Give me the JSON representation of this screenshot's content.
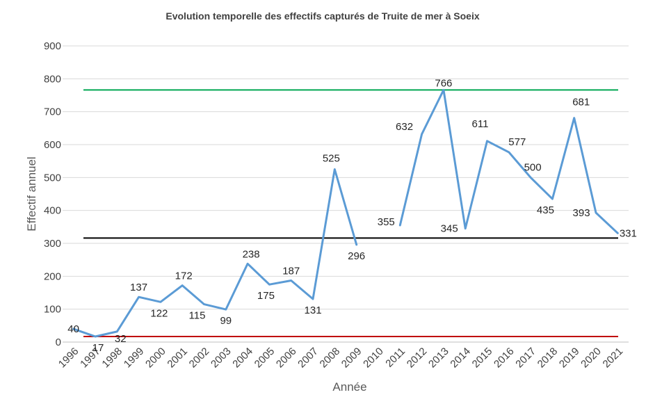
{
  "chart_data": {
    "type": "line",
    "title": "Evolution temporelle des effectifs capturés de Truite de mer à Soeix",
    "xlabel": "Année",
    "ylabel": "Effectif annuel",
    "ylim": [
      0,
      900
    ],
    "yticks": [
      "0",
      "100",
      "200",
      "300",
      "400",
      "500",
      "600",
      "700",
      "800",
      "900"
    ],
    "categories": [
      "1996",
      "1997",
      "1998",
      "1999",
      "2000",
      "2001",
      "2002",
      "2003",
      "2004",
      "2005",
      "2006",
      "2007",
      "2008",
      "2009",
      "2010",
      "2011",
      "2012",
      "2013",
      "2014",
      "2015",
      "2016",
      "2017",
      "2018",
      "2019",
      "2020",
      "2021"
    ],
    "series": [
      {
        "color": "#5B9BD5",
        "values": [
          40,
          17,
          32,
          137,
          122,
          172,
          115,
          99,
          238,
          175,
          187,
          131,
          525,
          296,
          null,
          355,
          632,
          766,
          345,
          611,
          577,
          500,
          435,
          681,
          393,
          331
        ]
      }
    ],
    "reference_lines": [
      {
        "value": 766,
        "color": "#00A651"
      },
      {
        "value": 316,
        "color": "#000000"
      },
      {
        "value": 17,
        "color": "#C00000"
      }
    ],
    "grid": true,
    "legend": "none"
  }
}
